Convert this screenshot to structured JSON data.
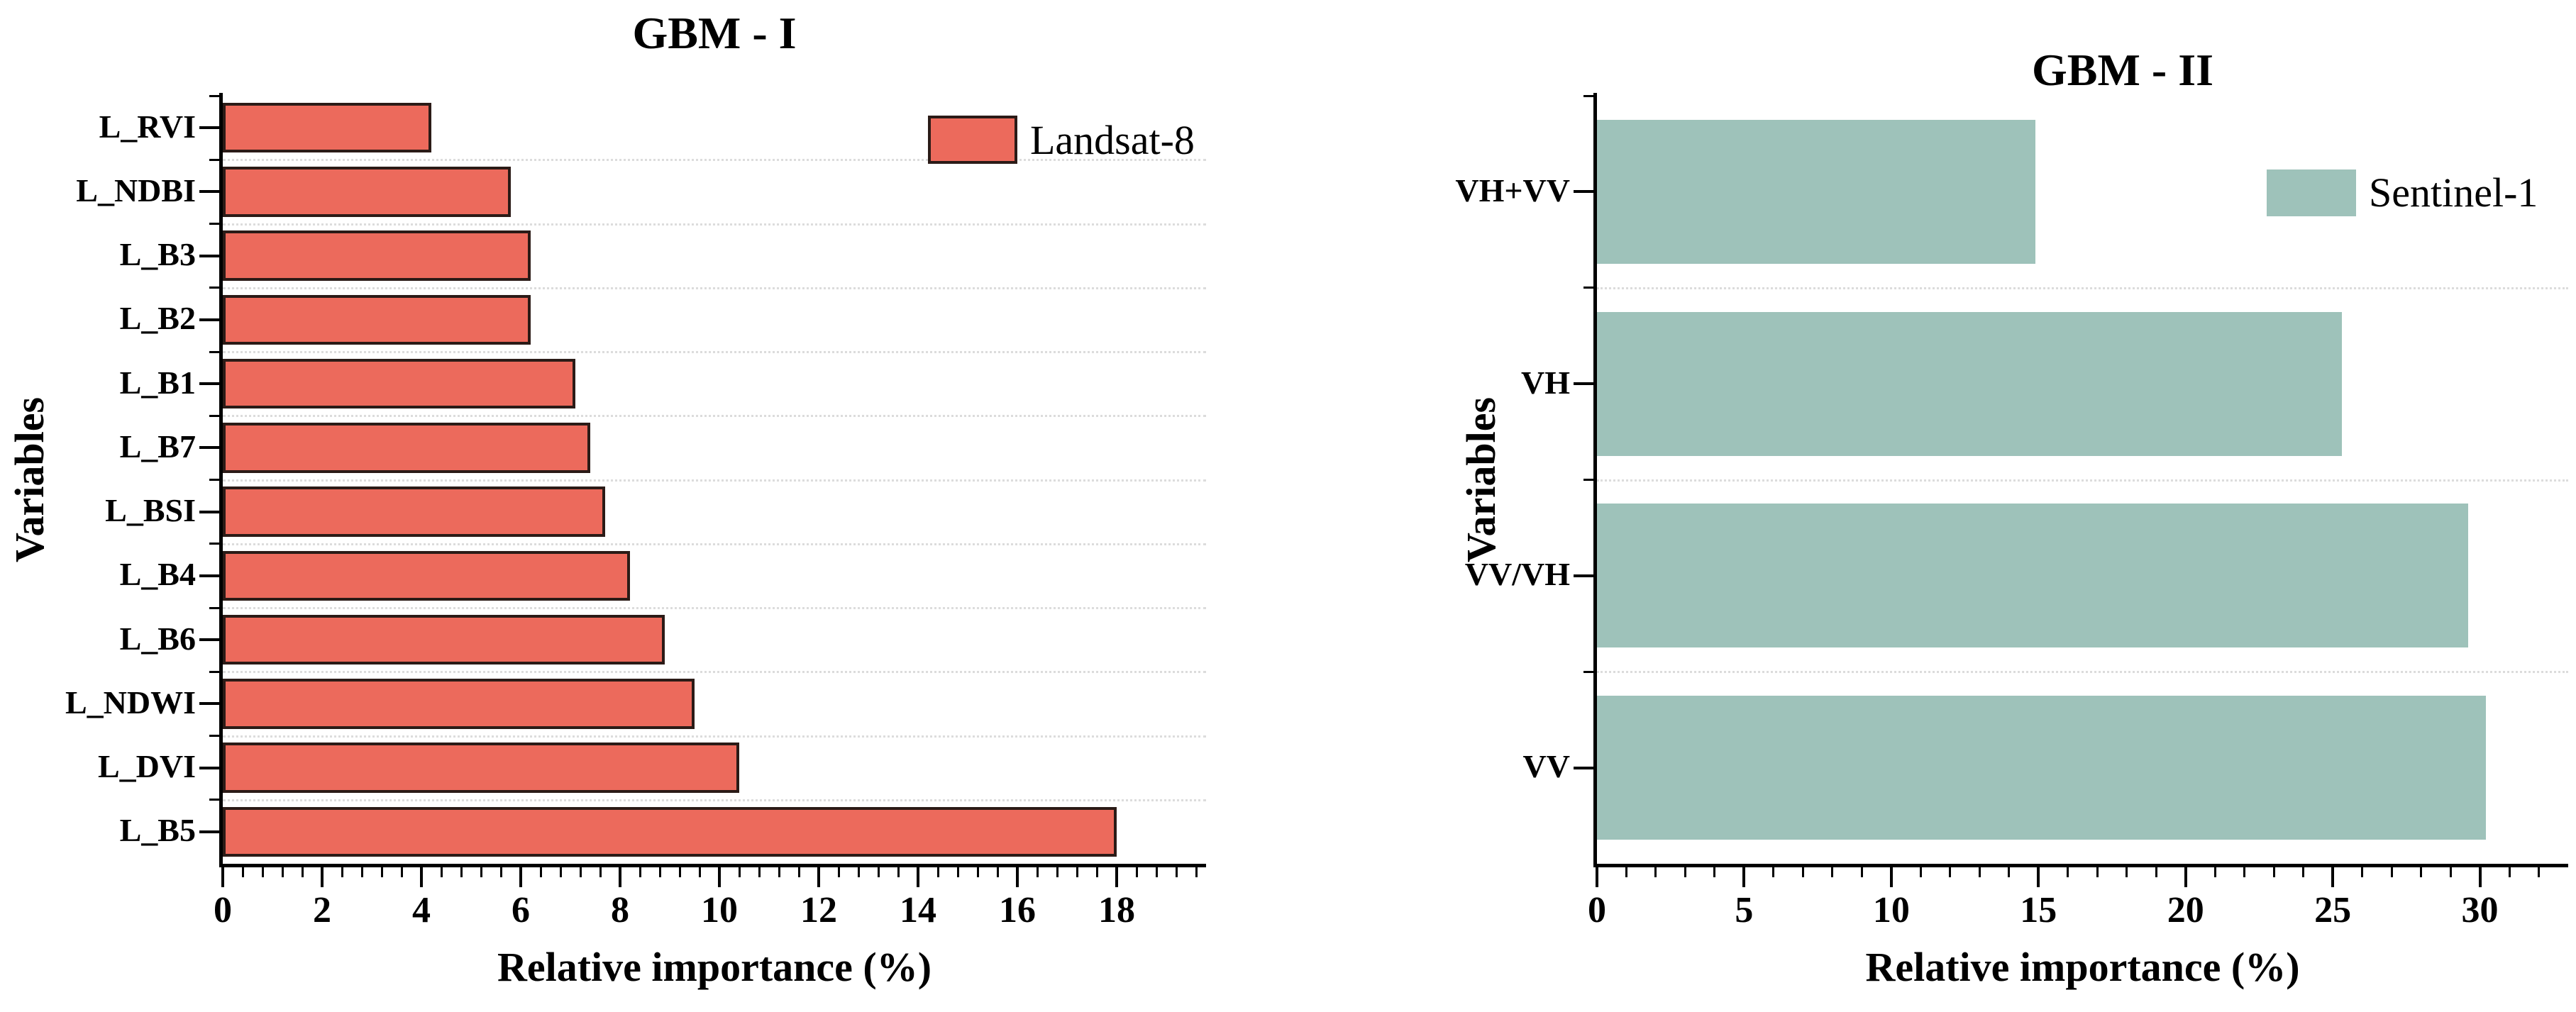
{
  "figure": {
    "background": "#FFFFFF",
    "text_color": "#000000",
    "grid_color": "#DCDCDC"
  },
  "chart_data": [
    {
      "type": "bar",
      "orientation": "horizontal",
      "title": "GBM - I",
      "xlabel": "Relative importance (%)",
      "ylabel": "Variables",
      "legend": {
        "label": "Landsat-8",
        "position": "upper-right",
        "swatch_color": "#EC6A5C",
        "swatch_border": "#2B1B17"
      },
      "categories_top_to_bottom": [
        "L_RVI",
        "L_NDBI",
        "L_B3",
        "L_B2",
        "L_B1",
        "L_B7",
        "L_BSI",
        "L_B4",
        "L_B6",
        "L_NDWI",
        "L_DVI",
        "L_B5"
      ],
      "values": [
        4.2,
        5.8,
        6.2,
        6.2,
        7.1,
        7.4,
        7.7,
        8.2,
        8.9,
        9.5,
        10.4,
        18.0
      ],
      "x_ticks": [
        0,
        2,
        4,
        6,
        8,
        10,
        12,
        14,
        16,
        18
      ],
      "x_minor_step": 0.4,
      "xlim": [
        0,
        19.8
      ],
      "grid": "dotted horizontal lines between categories",
      "bar_color": "#EC6A5C",
      "bar_edge_color": "#2B1B17"
    },
    {
      "type": "bar",
      "orientation": "horizontal",
      "title": "GBM - II",
      "xlabel": "Relative importance (%)",
      "ylabel": "Variables",
      "legend": {
        "label": "Sentinel-1",
        "position": "upper-right",
        "swatch_color": "#9EC2BA",
        "swatch_border": null
      },
      "categories_top_to_bottom": [
        "VH+VV",
        "VH",
        "VV/VH",
        "VV"
      ],
      "values": [
        14.9,
        25.3,
        29.6,
        30.2
      ],
      "x_ticks": [
        0,
        5,
        10,
        15,
        20,
        25,
        30
      ],
      "x_minor_step": 1,
      "xlim": [
        0,
        33
      ],
      "grid": "dotted horizontal lines between categories",
      "bar_color": "#9EC2BA",
      "bar_edge_color": null
    }
  ]
}
